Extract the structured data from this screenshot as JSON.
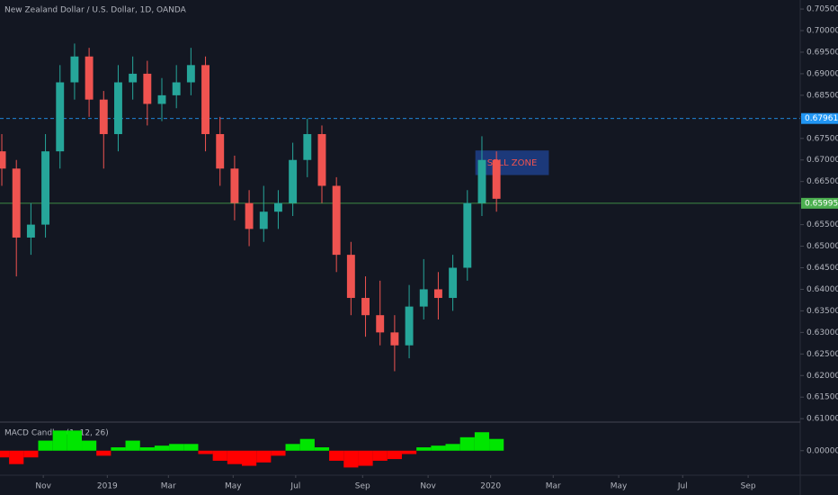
{
  "chart_data": [
    {
      "type": "candlestick",
      "title": "New Zealand Dollar / U.S. Dollar, 1D, OANDA",
      "x": [
        0,
        2,
        4,
        6,
        8,
        10,
        12,
        14,
        16,
        18,
        20,
        22,
        24,
        26,
        28,
        30,
        32,
        34,
        36,
        38,
        40,
        42,
        44,
        46,
        48,
        50,
        52,
        54,
        56,
        58,
        60,
        62,
        64,
        66,
        68
      ],
      "open": [
        0.672,
        0.668,
        0.652,
        0.655,
        0.672,
        0.688,
        0.694,
        0.684,
        0.676,
        0.688,
        0.69,
        0.683,
        0.685,
        0.688,
        0.692,
        0.676,
        0.668,
        0.66,
        0.654,
        0.658,
        0.66,
        0.67,
        0.676,
        0.664,
        0.648,
        0.638,
        0.634,
        0.63,
        0.627,
        0.636,
        0.64,
        0.638,
        0.645,
        0.66,
        0.67
      ],
      "high": [
        0.676,
        0.67,
        0.66,
        0.676,
        0.692,
        0.697,
        0.696,
        0.686,
        0.692,
        0.694,
        0.693,
        0.689,
        0.692,
        0.696,
        0.694,
        0.68,
        0.671,
        0.663,
        0.664,
        0.663,
        0.674,
        0.6796,
        0.678,
        0.666,
        0.651,
        0.643,
        0.642,
        0.634,
        0.641,
        0.647,
        0.644,
        0.648,
        0.663,
        0.6755,
        0.672
      ],
      "low": [
        0.664,
        0.643,
        0.648,
        0.652,
        0.668,
        0.684,
        0.68,
        0.668,
        0.672,
        0.684,
        0.678,
        0.679,
        0.682,
        0.685,
        0.672,
        0.664,
        0.656,
        0.65,
        0.651,
        0.654,
        0.657,
        0.666,
        0.66,
        0.644,
        0.634,
        0.629,
        0.627,
        0.621,
        0.624,
        0.633,
        0.633,
        0.635,
        0.642,
        0.657,
        0.658
      ],
      "close": [
        0.668,
        0.652,
        0.655,
        0.672,
        0.688,
        0.694,
        0.684,
        0.676,
        0.688,
        0.69,
        0.683,
        0.685,
        0.688,
        0.692,
        0.676,
        0.668,
        0.66,
        0.654,
        0.658,
        0.66,
        0.67,
        0.676,
        0.664,
        0.648,
        0.638,
        0.634,
        0.63,
        0.627,
        0.636,
        0.64,
        0.638,
        0.645,
        0.66,
        0.67,
        0.661
      ],
      "up_color": "#26a69a",
      "down_color": "#ef5350",
      "xlim": [
        -0.25,
        109.76
      ],
      "xticks": [
        {
          "value": 5.7,
          "label": "Nov"
        },
        {
          "value": 14.5,
          "label": "2019"
        },
        {
          "value": 22.9,
          "label": "Mar"
        },
        {
          "value": 31.8,
          "label": "May"
        },
        {
          "value": 40.4,
          "label": "Jul"
        },
        {
          "value": 49.6,
          "label": "Sep"
        },
        {
          "value": 58.6,
          "label": "Nov"
        },
        {
          "value": 67.2,
          "label": "2020"
        },
        {
          "value": 75.8,
          "label": "Mar"
        },
        {
          "value": 84.8,
          "label": "May"
        },
        {
          "value": 93.6,
          "label": "Jul"
        },
        {
          "value": 102.6,
          "label": "Sep"
        }
      ],
      "ylim": [
        0.6092,
        0.7071
      ],
      "yticks": [
        {
          "value": 0.61,
          "label": "0.61000"
        },
        {
          "value": 0.615,
          "label": "0.61500"
        },
        {
          "value": 0.62,
          "label": "0.62000"
        },
        {
          "value": 0.625,
          "label": "0.62500"
        },
        {
          "value": 0.63,
          "label": "0.63000"
        },
        {
          "value": 0.635,
          "label": "0.63500"
        },
        {
          "value": 0.64,
          "label": "0.64000"
        },
        {
          "value": 0.645,
          "label": "0.64500"
        },
        {
          "value": 0.65,
          "label": "0.65000"
        },
        {
          "value": 0.655,
          "label": "0.65500"
        },
        {
          "value": 0.66,
          "label": "0.66000"
        },
        {
          "value": 0.665,
          "label": "0.66500"
        },
        {
          "value": 0.67,
          "label": "0.67000"
        },
        {
          "value": 0.675,
          "label": "0.67500"
        },
        {
          "value": 0.68,
          "label": "0.68000"
        },
        {
          "value": 0.685,
          "label": "0.68500"
        },
        {
          "value": 0.69,
          "label": "0.69000"
        },
        {
          "value": 0.695,
          "label": "0.69500"
        },
        {
          "value": 0.7,
          "label": "0.70000"
        },
        {
          "value": 0.705,
          "label": "0.70500"
        }
      ],
      "lines": [
        {
          "value": 0.67961,
          "color": "#2196f3",
          "style": "dashed"
        },
        {
          "value": 0.65995,
          "color": "#4caf50",
          "style": "solid"
        }
      ],
      "zone": {
        "label": "SELL ZONE",
        "x": [
          65.1,
          75.2
        ],
        "y": [
          0.6665,
          0.6722
        ],
        "color": "#1e3f8a",
        "text_color": "#ef5350"
      }
    },
    {
      "type": "bar",
      "title": "MACD Candles (1, 12, 26)",
      "x": [
        0,
        2,
        4,
        6,
        8,
        10,
        12,
        14,
        16,
        18,
        20,
        22,
        24,
        26,
        28,
        30,
        32,
        34,
        36,
        38,
        40,
        42,
        44,
        46,
        48,
        50,
        52,
        54,
        56,
        58,
        60,
        62,
        64,
        66,
        68
      ],
      "values": [
        -0.004,
        -0.008,
        -0.004,
        0.006,
        0.012,
        0.012,
        0.006,
        -0.003,
        0.002,
        0.006,
        0.002,
        0.003,
        0.004,
        0.004,
        -0.002,
        -0.006,
        -0.008,
        -0.009,
        -0.007,
        -0.003,
        0.004,
        0.007,
        0.002,
        -0.006,
        -0.01,
        -0.009,
        -0.006,
        -0.005,
        -0.002,
        0.002,
        0.003,
        0.004,
        0.008,
        0.011,
        0.007
      ],
      "up_color": "#00e600",
      "down_color": "#ff0000",
      "ylim": [
        -0.013,
        0.0165
      ],
      "yticks": [
        {
          "value": 0,
          "label": "0.000000"
        }
      ]
    }
  ]
}
